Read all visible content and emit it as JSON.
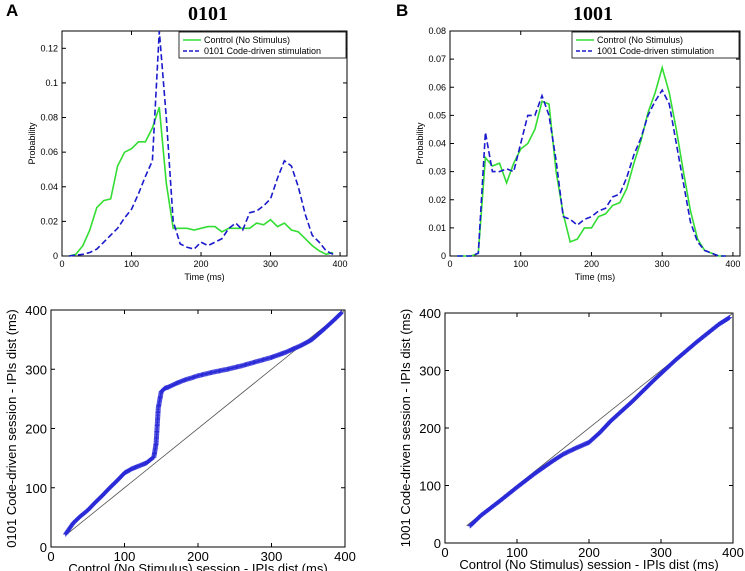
{
  "panels": {
    "A": {
      "letter": "A",
      "title": "0101"
    },
    "B": {
      "letter": "B",
      "title": "1001"
    }
  },
  "colors": {
    "control": "#33dd33",
    "stim": "#1a1acc",
    "qq": "#2a2ad8",
    "diag": "#555555"
  },
  "chart_data": [
    {
      "id": "A-top",
      "type": "line",
      "title": "0101",
      "xlabel": "Time (ms)",
      "ylabel": "Probability",
      "xlim": [
        0,
        410
      ],
      "ylim": [
        0,
        0.13
      ],
      "xticks": [
        0,
        100,
        200,
        300,
        400
      ],
      "xtick_labels": [
        "0",
        "100",
        "200",
        "300",
        "400"
      ],
      "yticks": [
        0,
        0.02,
        0.04,
        0.06,
        0.08,
        0.1,
        0.12
      ],
      "ytick_labels": [
        "0",
        "0.02",
        "0.04",
        "0.06",
        "0.08",
        "0.1",
        "0.12"
      ],
      "legend_position": "top-right",
      "x": [
        10,
        20,
        30,
        40,
        50,
        60,
        70,
        80,
        90,
        100,
        110,
        120,
        130,
        140,
        150,
        160,
        170,
        180,
        190,
        200,
        210,
        220,
        230,
        240,
        250,
        260,
        270,
        280,
        290,
        300,
        310,
        320,
        330,
        340,
        350,
        360,
        370,
        380,
        390
      ],
      "series": [
        {
          "name": "Control (No Stimulus)",
          "style": "solid",
          "color": "#33dd33",
          "values": [
            0,
            0.001,
            0.006,
            0.015,
            0.028,
            0.032,
            0.033,
            0.052,
            0.06,
            0.062,
            0.066,
            0.066,
            0.074,
            0.086,
            0.042,
            0.016,
            0.016,
            0.016,
            0.015,
            0.016,
            0.017,
            0.017,
            0.014,
            0.016,
            0.016,
            0.016,
            0.016,
            0.019,
            0.018,
            0.021,
            0.017,
            0.019,
            0.015,
            0.014,
            0.01,
            0.006,
            0.003,
            0.001,
            0.002
          ]
        },
        {
          "name": "0101 Code-driven stimulation",
          "style": "dashed",
          "color": "#1a1acc",
          "values": [
            0,
            0.0005,
            0.001,
            0.002,
            0.004,
            0.008,
            0.012,
            0.016,
            0.022,
            0.027,
            0.036,
            0.046,
            0.055,
            0.13,
            0.08,
            0.02,
            0.007,
            0.005,
            0.004,
            0.008,
            0.006,
            0.008,
            0.01,
            0.016,
            0.019,
            0.015,
            0.025,
            0.026,
            0.029,
            0.033,
            0.045,
            0.055,
            0.052,
            0.04,
            0.024,
            0.012,
            0.008,
            0.003,
            0.001
          ]
        }
      ]
    },
    {
      "id": "B-top",
      "type": "line",
      "title": "1001",
      "xlabel": "Time (ms)",
      "ylabel": "Probability",
      "xlim": [
        0,
        410
      ],
      "ylim": [
        0,
        0.08
      ],
      "xticks": [
        0,
        100,
        200,
        300,
        400
      ],
      "xtick_labels": [
        "0",
        "100",
        "200",
        "300",
        "400"
      ],
      "yticks": [
        0,
        0.01,
        0.02,
        0.03,
        0.04,
        0.05,
        0.06,
        0.07,
        0.08
      ],
      "ytick_labels": [
        "0",
        "0.01",
        "0.02",
        "0.03",
        "0.04",
        "0.05",
        "0.06",
        "0.07",
        "0.08"
      ],
      "legend_position": "top-right",
      "x": [
        10,
        20,
        30,
        40,
        50,
        60,
        70,
        80,
        90,
        100,
        110,
        120,
        130,
        140,
        150,
        160,
        170,
        180,
        190,
        200,
        210,
        220,
        230,
        240,
        250,
        260,
        270,
        280,
        290,
        300,
        310,
        320,
        330,
        340,
        350,
        360,
        370,
        380,
        390
      ],
      "series": [
        {
          "name": "Control (No Stimulus)",
          "style": "solid",
          "color": "#33dd33",
          "values": [
            0,
            0,
            0,
            0.001,
            0.035,
            0.032,
            0.033,
            0.026,
            0.033,
            0.038,
            0.04,
            0.045,
            0.055,
            0.054,
            0.03,
            0.015,
            0.005,
            0.006,
            0.01,
            0.01,
            0.014,
            0.015,
            0.018,
            0.019,
            0.024,
            0.033,
            0.041,
            0.051,
            0.058,
            0.067,
            0.058,
            0.045,
            0.03,
            0.016,
            0.006,
            0.002,
            0.001,
            0,
            0
          ]
        },
        {
          "name": "1001 Code-driven stimulation",
          "style": "dashed",
          "color": "#1a1acc",
          "values": [
            0,
            0,
            0,
            0.001,
            0.044,
            0.03,
            0.03,
            0.031,
            0.03,
            0.04,
            0.05,
            0.05,
            0.057,
            0.05,
            0.034,
            0.014,
            0.013,
            0.011,
            0.013,
            0.014,
            0.016,
            0.017,
            0.021,
            0.022,
            0.028,
            0.036,
            0.042,
            0.05,
            0.055,
            0.059,
            0.054,
            0.04,
            0.026,
            0.012,
            0.005,
            0.002,
            0.001,
            0,
            0
          ]
        }
      ]
    },
    {
      "id": "A-bottom",
      "type": "scatter",
      "xlabel": "Control (No Stimulus) session - IPIs dist (ms)",
      "ylabel": "0101 Code-driven session - IPIs dist (ms)",
      "xlim": [
        0,
        400
      ],
      "ylim": [
        0,
        400
      ],
      "xticks": [
        0,
        100,
        200,
        300,
        400
      ],
      "xtick_labels": [
        "0",
        "100",
        "200",
        "300",
        "400"
      ],
      "yticks": [
        0,
        100,
        200,
        300,
        400
      ],
      "ytick_labels": [
        "0",
        "100",
        "200",
        "300",
        "400"
      ],
      "series": [
        {
          "name": "Q-Q quantiles",
          "marker": "+",
          "color": "#2a2ad8",
          "x": [
            20,
            30,
            40,
            50,
            60,
            70,
            80,
            90,
            100,
            110,
            120,
            130,
            140,
            143,
            146,
            150,
            155,
            160,
            170,
            180,
            200,
            220,
            240,
            260,
            280,
            300,
            320,
            340,
            355,
            370,
            385,
            395
          ],
          "y": [
            22,
            40,
            52,
            62,
            75,
            87,
            100,
            112,
            125,
            132,
            137,
            142,
            152,
            175,
            235,
            262,
            268,
            270,
            276,
            281,
            289,
            295,
            300,
            306,
            313,
            320,
            329,
            340,
            350,
            366,
            383,
            395
          ]
        },
        {
          "name": "y = x",
          "style": "line",
          "color": "#555555",
          "x": [
            20,
            400
          ],
          "y": [
            20,
            400
          ]
        }
      ]
    },
    {
      "id": "B-bottom",
      "type": "scatter",
      "xlabel": "Control (No Stimulus) session - IPIs dist (ms)",
      "ylabel": "1001 Code-driven session - IPIs dist (ms)",
      "xlim": [
        0,
        400
      ],
      "ylim": [
        0,
        400
      ],
      "xticks": [
        0,
        100,
        200,
        300,
        400
      ],
      "xtick_labels": [
        "0",
        "100",
        "200",
        "300",
        "400"
      ],
      "yticks": [
        0,
        100,
        200,
        300,
        400
      ],
      "ytick_labels": [
        "0",
        "100",
        "200",
        "300",
        "400"
      ],
      "series": [
        {
          "name": "Q-Q quantiles",
          "marker": "+",
          "color": "#2a2ad8",
          "x": [
            35,
            50,
            75,
            100,
            125,
            150,
            165,
            180,
            200,
            215,
            230,
            260,
            290,
            320,
            350,
            380,
            395
          ],
          "y": [
            30,
            48,
            72,
            97,
            121,
            143,
            155,
            164,
            175,
            192,
            212,
            246,
            283,
            318,
            350,
            380,
            392
          ]
        },
        {
          "name": "y = x",
          "style": "line",
          "color": "#555555",
          "x": [
            30,
            400
          ],
          "y": [
            30,
            400
          ]
        }
      ]
    }
  ]
}
